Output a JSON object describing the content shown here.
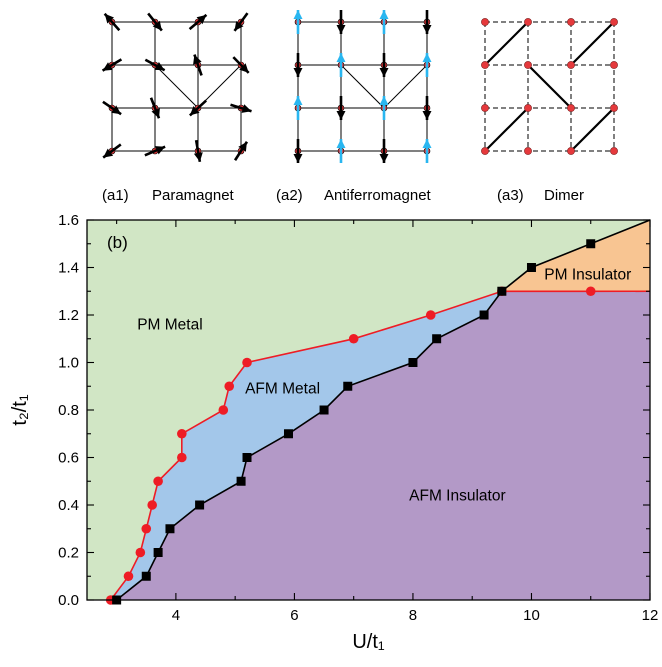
{
  "panels": {
    "a1": {
      "id": "(a1)",
      "name": "Paramagnet"
    },
    "a2": {
      "id": "(a2)",
      "name": "Antiferromagnet"
    },
    "a3": {
      "id": "(a3)",
      "name": "Dimer"
    }
  },
  "colors": {
    "pm_metal": "#d1e6c5",
    "afm_metal": "#a3c7ea",
    "afm_insulator": "#b399c7",
    "pm_insulator": "#f8c592",
    "red_line": "#ee1c25",
    "black_line": "#000000",
    "spin_up": "#29b6f0",
    "site_fill": "#e5393c"
  },
  "chart_data": {
    "type": "scatter",
    "panel_label": "(b)",
    "xlabel": "U/t₁",
    "ylabel": "t₂/t₁",
    "xlim": [
      2.5,
      12
    ],
    "ylim": [
      0,
      1.6
    ],
    "xticks": [
      "4",
      "6",
      "8",
      "10",
      "12"
    ],
    "yticks": [
      "0.0",
      "0.2",
      "0.4",
      "0.6",
      "0.8",
      "1.0",
      "1.2",
      "1.4",
      "1.6"
    ],
    "regions": [
      {
        "name": "PM Metal",
        "x": 3.9,
        "y": 1.14
      },
      {
        "name": "AFM Metal",
        "x": 5.8,
        "y": 0.87
      },
      {
        "name": "AFM Insulator",
        "x": 8.75,
        "y": 0.42
      },
      {
        "name": "PM Insulator",
        "x": 10.95,
        "y": 1.35
      }
    ],
    "series": [
      {
        "name": "",
        "marker": "circle",
        "x": [
          2.9,
          3.2,
          3.4,
          3.5,
          3.6,
          3.7,
          4.1,
          4.1,
          4.8,
          4.9,
          5.2,
          7.0,
          8.3,
          9.5,
          11.0
        ],
        "y": [
          0.0,
          0.1,
          0.2,
          0.3,
          0.4,
          0.5,
          0.6,
          0.7,
          0.8,
          0.9,
          1.0,
          1.1,
          1.2,
          1.3,
          1.3
        ]
      },
      {
        "name": "",
        "marker": "square",
        "x": [
          3.0,
          3.5,
          3.7,
          3.9,
          4.4,
          5.1,
          5.2,
          5.9,
          6.5,
          6.9,
          8.0,
          8.4,
          9.2,
          9.5,
          10.0,
          11.0
        ],
        "y": [
          0.0,
          0.1,
          0.2,
          0.3,
          0.4,
          0.5,
          0.6,
          0.7,
          0.8,
          0.9,
          1.0,
          1.1,
          1.2,
          1.3,
          1.4,
          1.5
        ]
      }
    ]
  }
}
